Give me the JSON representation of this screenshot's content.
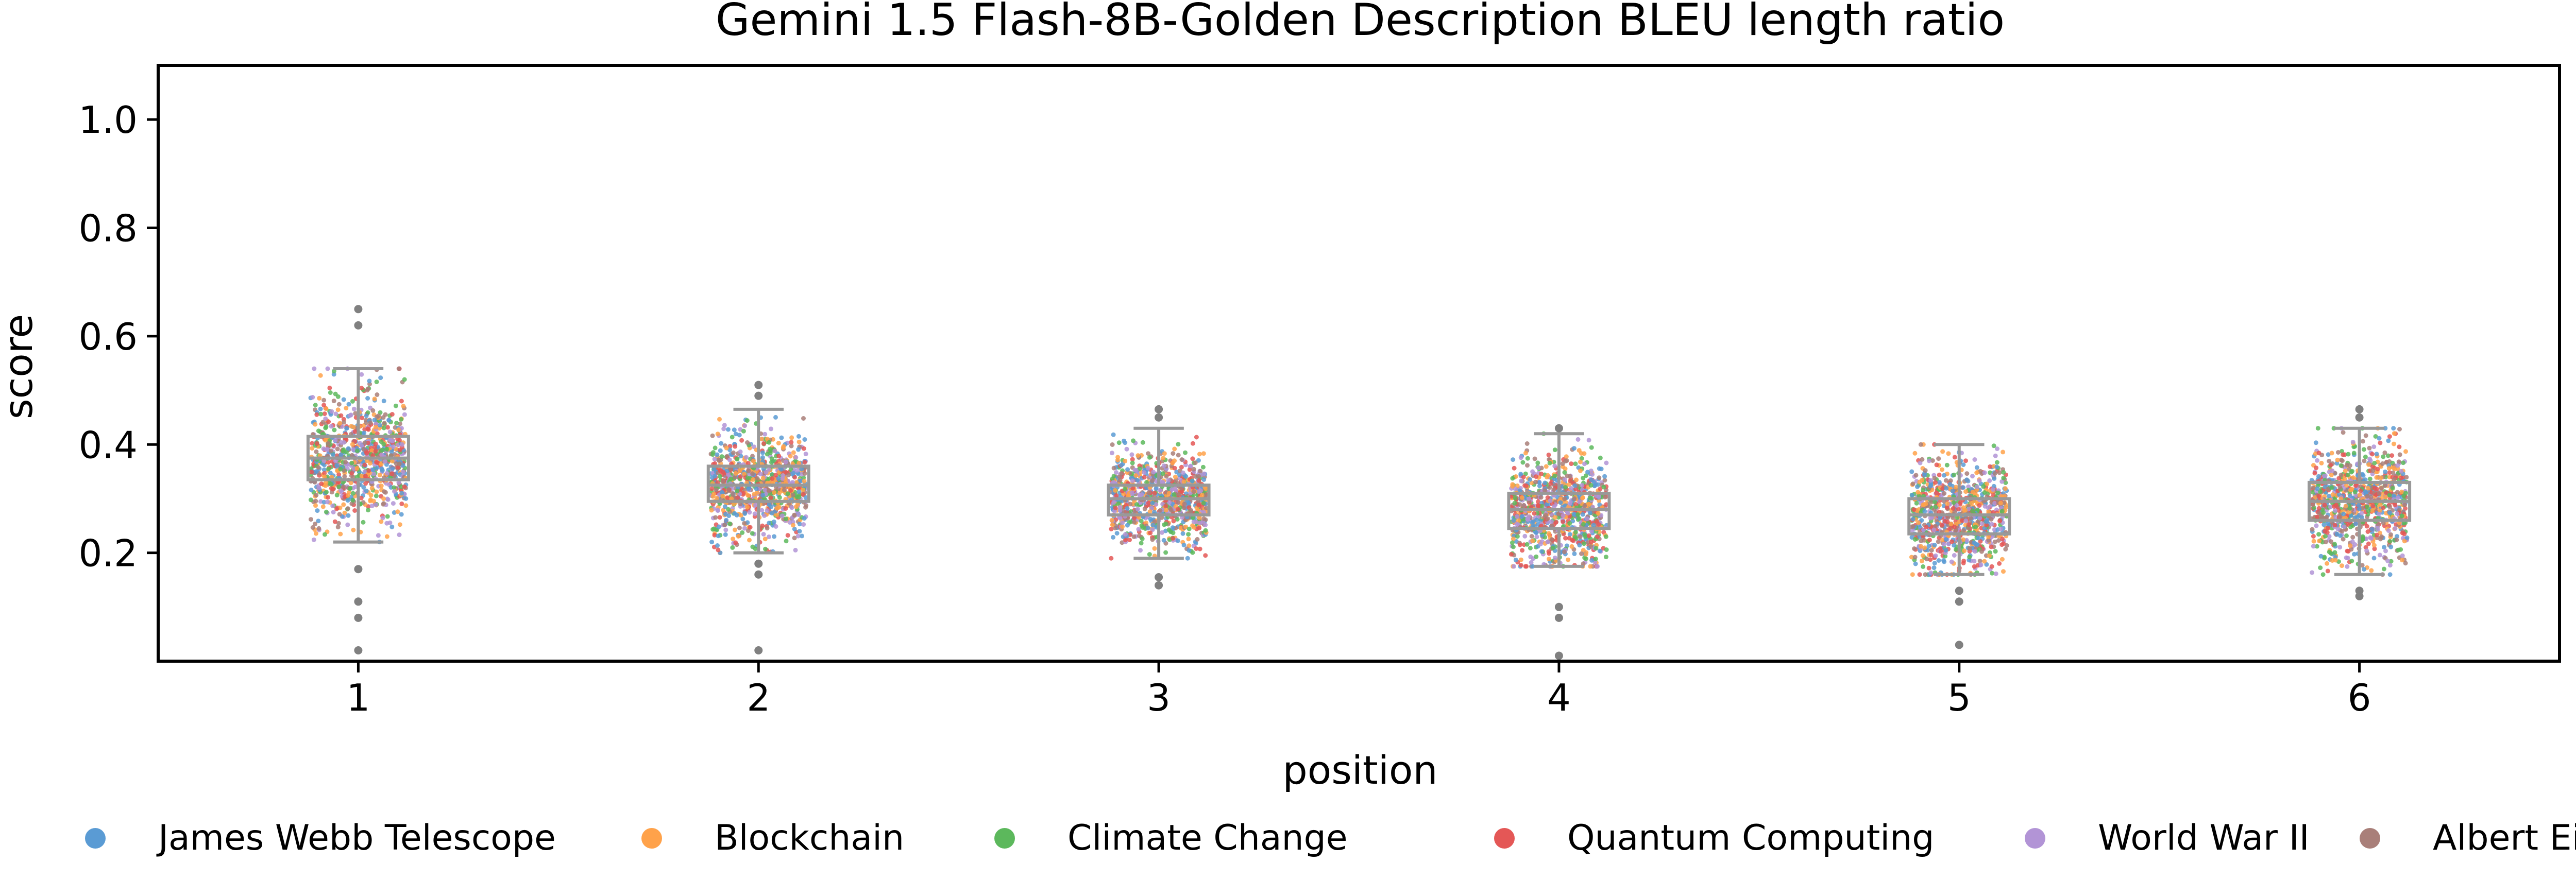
{
  "chart_data": {
    "type": "box",
    "title": "Gemini 1.5 Flash-8B-Golden Description BLEU length ratio",
    "xlabel": "position",
    "ylabel": "score",
    "categories": [
      "1",
      "2",
      "3",
      "4",
      "5",
      "6"
    ],
    "ylim": [
      0,
      1.1
    ],
    "yticks": [
      "0.2",
      "0.4",
      "0.6",
      "0.8",
      "1.0"
    ],
    "grid": false,
    "legend_position": "bottom",
    "box_color": "#999999",
    "series": [
      {
        "name": "James Webb Telescope",
        "color": "#5a9bd4"
      },
      {
        "name": "Blockchain",
        "color": "#ffa24a"
      },
      {
        "name": "Climate Change",
        "color": "#5cb85c"
      },
      {
        "name": "Quantum Computing",
        "color": "#e45756"
      },
      {
        "name": "World War II",
        "color": "#b294d6"
      },
      {
        "name": "Albert Einstein",
        "color": "#a97f79"
      }
    ],
    "boxes": [
      {
        "position": "1",
        "whisker_low": 0.22,
        "q1": 0.335,
        "median": 0.375,
        "q3": 0.415,
        "whisker_high": 0.54,
        "outliers": [
          0.65,
          0.62,
          0.17,
          0.11,
          0.08,
          0.02
        ]
      },
      {
        "position": "2",
        "whisker_low": 0.2,
        "q1": 0.295,
        "median": 0.325,
        "q3": 0.36,
        "whisker_high": 0.465,
        "outliers": [
          0.51,
          0.49,
          0.18,
          0.16,
          0.02
        ]
      },
      {
        "position": "3",
        "whisker_low": 0.19,
        "q1": 0.27,
        "median": 0.3,
        "q3": 0.325,
        "whisker_high": 0.43,
        "outliers": [
          0.465,
          0.45,
          0.155,
          0.14
        ]
      },
      {
        "position": "4",
        "whisker_low": 0.175,
        "q1": 0.245,
        "median": 0.28,
        "q3": 0.31,
        "whisker_high": 0.42,
        "outliers": [
          0.43,
          0.1,
          0.08,
          0.01
        ]
      },
      {
        "position": "5",
        "whisker_low": 0.16,
        "q1": 0.235,
        "median": 0.27,
        "q3": 0.3,
        "whisker_high": 0.4,
        "outliers": [
          0.13,
          0.11,
          0.03
        ]
      },
      {
        "position": "6",
        "whisker_low": 0.16,
        "q1": 0.26,
        "median": 0.295,
        "q3": 0.33,
        "whisker_high": 0.43,
        "outliers": [
          0.465,
          0.45,
          0.13,
          0.12
        ]
      }
    ]
  }
}
